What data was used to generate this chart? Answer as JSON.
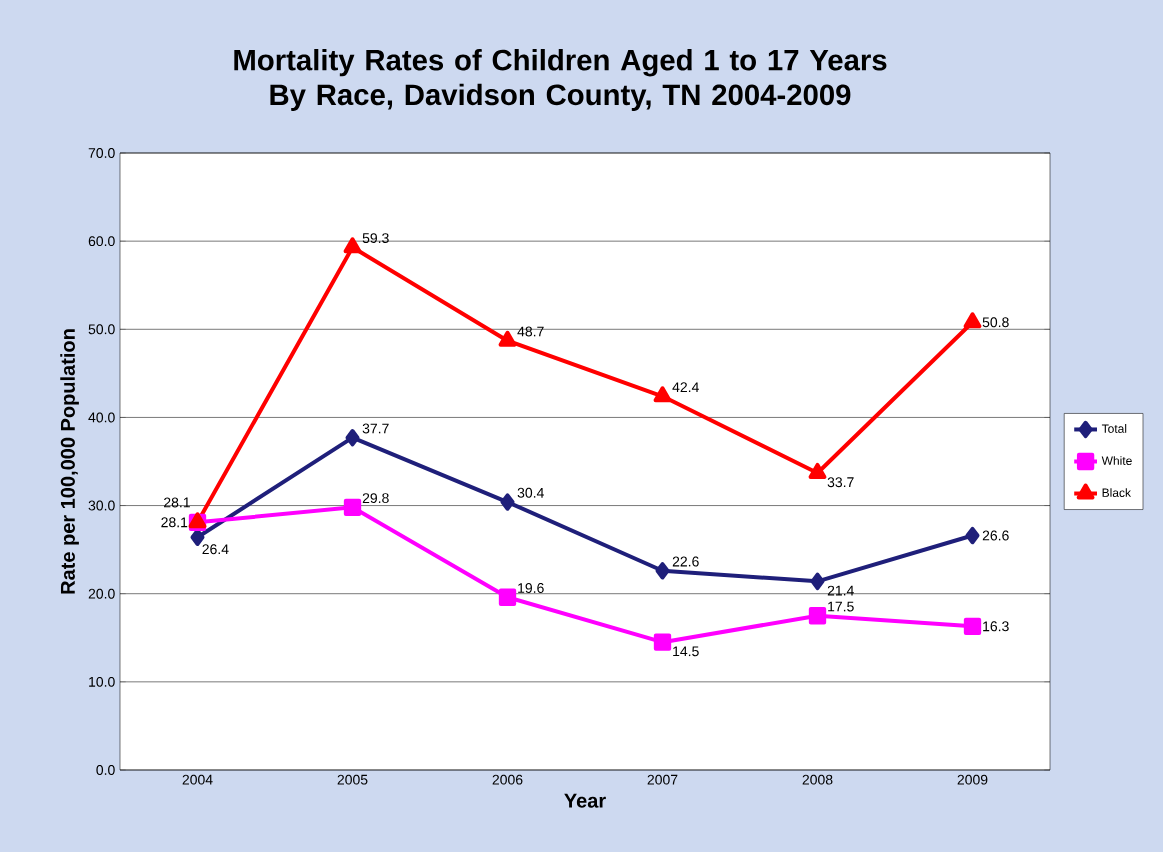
{
  "chart_data": {
    "type": "line",
    "title": "Mortality Rates of Children Aged 1 to 17 Years By Race, Davidson County, TN 2004-2009",
    "xlabel": "Year",
    "ylabel": "Rate per 100,000 Population",
    "categories": [
      "2004",
      "2005",
      "2006",
      "2007",
      "2008",
      "2009"
    ],
    "series": [
      {
        "name": "Total",
        "color": "#1f1f7a",
        "marker": "diamond",
        "values": [
          26.4,
          37.7,
          30.4,
          22.6,
          21.4,
          26.6
        ]
      },
      {
        "name": "White",
        "color": "#ff00ff",
        "marker": "square",
        "values": [
          28.1,
          29.8,
          19.6,
          14.5,
          17.5,
          16.3
        ]
      },
      {
        "name": "Black",
        "color": "#ff0000",
        "marker": "triangle",
        "values": [
          28.1,
          59.3,
          48.7,
          42.4,
          33.7,
          50.8
        ]
      }
    ],
    "ylim": [
      0,
      70
    ],
    "yticks": [
      {
        "value": 0,
        "label": "0.0"
      },
      {
        "value": 10,
        "label": "10.0"
      },
      {
        "value": 20,
        "label": "20.0"
      },
      {
        "value": 30,
        "label": "30.0"
      },
      {
        "value": 40,
        "label": "40.0"
      },
      {
        "value": 50,
        "label": "50.0"
      },
      {
        "value": 60,
        "label": "60.0"
      },
      {
        "value": 70,
        "label": "70.0"
      }
    ],
    "grid": "y",
    "legend": "right",
    "data_labels": true,
    "line_style": "solid"
  }
}
